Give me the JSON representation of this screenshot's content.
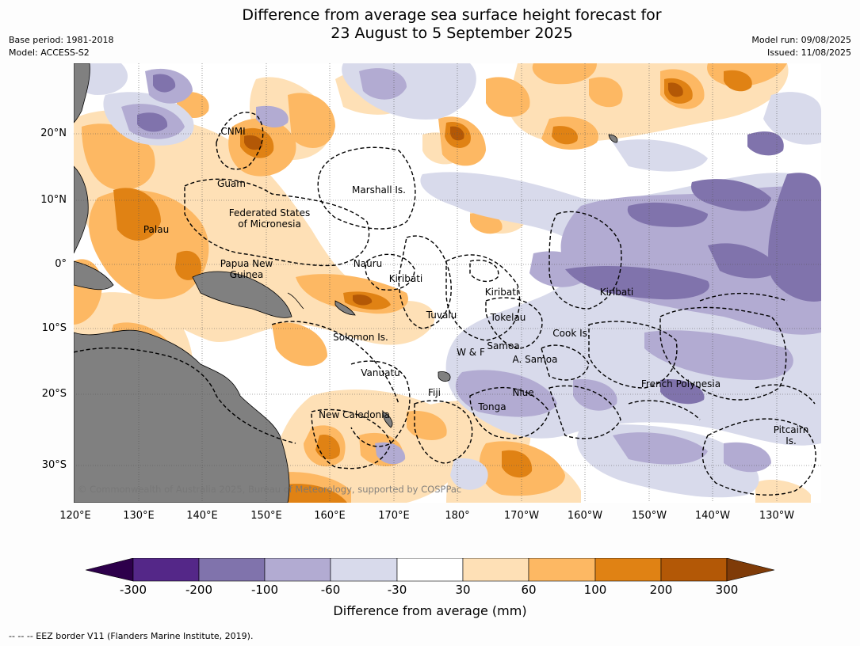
{
  "title": {
    "line1": "Difference from average sea surface height forecast for",
    "line2": "23 August to 5 September 2025"
  },
  "meta": {
    "base_period": "Base period: 1981-2018",
    "model": "Model: ACCESS-S2",
    "model_run": "Model run: 09/08/2025",
    "issued": "Issued: 11/08/2025"
  },
  "map": {
    "lat_labels": [
      "20°N",
      "10°N",
      "0°",
      "10°S",
      "20°S",
      "30°S"
    ],
    "lon_labels": [
      "120°E",
      "130°E",
      "140°E",
      "150°E",
      "160°E",
      "170°E",
      "180°",
      "170°W",
      "160°W",
      "150°W",
      "140°W",
      "130°W"
    ],
    "places": {
      "cnmi": "CNMI",
      "guam": "Guam",
      "marshall": "Marshall Is.",
      "fsm_line1": "Federated States",
      "fsm_line2": "of Micronesia",
      "palau": "Palau",
      "png_line1": "Papua New",
      "png_line2": "Guinea",
      "nauru": "Nauru",
      "kiribati_w": "Kiribati",
      "kiribati_c": "Kiribati",
      "kiribati_e": "Kiribati",
      "tuvalu": "Tuvalu",
      "tokelau": "Tokelau",
      "cook": "Cook Is.",
      "solomon": "Solomon Is.",
      "samoa": "Samoa",
      "wf": "W & F",
      "asamoa": "A. Samoa",
      "vanuatu": "Vanuatu",
      "fiji": "Fiji",
      "niue": "Niue",
      "tonga": "Tonga",
      "frpoly": "French Polynesia",
      "newcal": "New Caledonia",
      "pitcairn_line1": "Pitcairn",
      "pitcairn_line2": "Is."
    },
    "copyright": "© Commonwealth of Australia 2025, Bureau of Meteorology, supported by COSPPac",
    "land_color": "#808080"
  },
  "colorbar": {
    "colors": [
      "#2d004b",
      "#542788",
      "#8073ac",
      "#b2abd2",
      "#d8daeb",
      "#ffffff",
      "#fee0b6",
      "#fdb863",
      "#e08214",
      "#b35806",
      "#7f3b08"
    ],
    "ticks": [
      "-300",
      "-200",
      "-100",
      "-60",
      "-30",
      "30",
      "60",
      "100",
      "200",
      "300"
    ],
    "label": "Difference from average (mm)"
  },
  "footnote": "--  --  -- EEZ border V11 (Flanders Marine Institute, 2019)."
}
